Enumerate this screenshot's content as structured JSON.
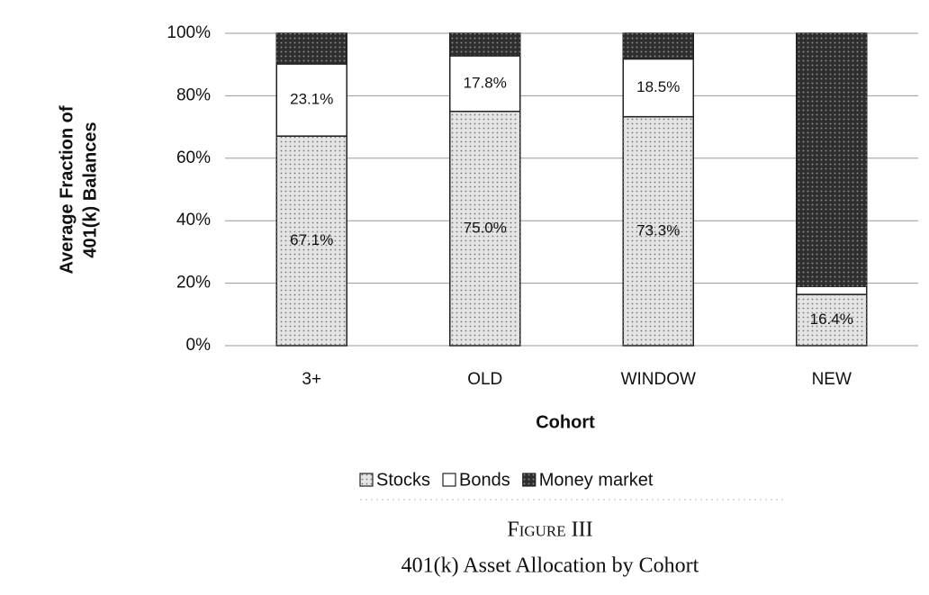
{
  "chart_data": {
    "type": "stacked_bar",
    "y_label": [
      "Average Fraction of",
      "401(k) Balances"
    ],
    "x_label": "Cohort",
    "figure_label": "Figure III",
    "caption": "401(k) Asset Allocation by Cohort",
    "categories": [
      "3+",
      "OLD",
      "WINDOW",
      "NEW"
    ],
    "series": [
      {
        "name": "Stocks",
        "color": "#e4e4e4",
        "values": [
          67.1,
          75.0,
          73.3,
          16.4
        ],
        "value_labels": [
          "67.1%",
          "75.0%",
          "73.3%",
          "16.4%"
        ]
      },
      {
        "name": "Bonds",
        "color": "#ffffff",
        "values": [
          23.1,
          17.8,
          18.5,
          2.6
        ],
        "value_labels": [
          "23.1%",
          "17.8%",
          "18.5%",
          null
        ]
      },
      {
        "name": "Money market",
        "color": "#2e2e2e",
        "values": [
          9.8,
          7.2,
          8.2,
          81.0
        ],
        "value_labels": [
          null,
          null,
          null,
          null
        ]
      }
    ],
    "ylim": [
      0,
      100
    ],
    "yticks": [
      {
        "value": 0,
        "label": "0%"
      },
      {
        "value": 20,
        "label": "20%"
      },
      {
        "value": 40,
        "label": "40%"
      },
      {
        "value": 60,
        "label": "60%"
      },
      {
        "value": 80,
        "label": "80%"
      },
      {
        "value": 100,
        "label": "100%"
      }
    ],
    "grid": true
  }
}
